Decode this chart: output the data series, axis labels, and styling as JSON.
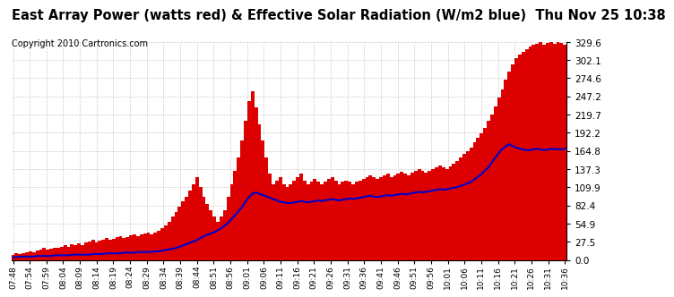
{
  "title": "East Array Power (watts red) & Effective Solar Radiation (W/m2 blue)  Thu Nov 25 10:38",
  "copyright": "Copyright 2010 Cartronics.com",
  "ymax": 329.6,
  "ymin": 0.0,
  "yticks": [
    0.0,
    27.5,
    54.9,
    82.4,
    109.9,
    137.3,
    164.8,
    192.2,
    219.7,
    247.2,
    274.6,
    302.1,
    329.6
  ],
  "xtick_labels": [
    "07:48",
    "07:54",
    "07:59",
    "08:04",
    "08:09",
    "08:14",
    "08:19",
    "08:24",
    "08:29",
    "08:34",
    "08:39",
    "08:44",
    "08:51",
    "08:56",
    "09:01",
    "09:06",
    "09:11",
    "09:16",
    "09:21",
    "09:26",
    "09:31",
    "09:36",
    "09:41",
    "09:46",
    "09:51",
    "09:56",
    "10:01",
    "10:06",
    "10:11",
    "10:16",
    "10:21",
    "10:26",
    "10:31",
    "10:36"
  ],
  "bar_color": "#dd0000",
  "line_color": "#0000cc",
  "background_color": "#ffffff",
  "grid_color": "#cccccc",
  "title_fontsize": 10.5,
  "copyright_fontsize": 7,
  "power_values": [
    8,
    10,
    9,
    10,
    12,
    13,
    12,
    14,
    16,
    18,
    15,
    17,
    19,
    18,
    20,
    22,
    20,
    24,
    22,
    25,
    23,
    26,
    28,
    30,
    27,
    29,
    31,
    33,
    30,
    32,
    34,
    36,
    33,
    35,
    37,
    39,
    36,
    38,
    40,
    42,
    39,
    41,
    44,
    48,
    52,
    58,
    65,
    72,
    80,
    88,
    95,
    105,
    115,
    125,
    110,
    95,
    85,
    75,
    65,
    58,
    65,
    75,
    95,
    115,
    135,
    155,
    180,
    210,
    240,
    255,
    230,
    205,
    180,
    155,
    130,
    115,
    120,
    125,
    115,
    110,
    115,
    120,
    125,
    130,
    120,
    115,
    118,
    122,
    118,
    115,
    118,
    122,
    125,
    120,
    115,
    118,
    120,
    118,
    115,
    118,
    120,
    122,
    125,
    128,
    125,
    122,
    125,
    128,
    130,
    125,
    128,
    130,
    133,
    130,
    128,
    132,
    135,
    138,
    135,
    132,
    135,
    138,
    140,
    143,
    140,
    138,
    142,
    145,
    150,
    155,
    160,
    165,
    170,
    178,
    185,
    192,
    200,
    210,
    220,
    232,
    245,
    258,
    272,
    285,
    295,
    305,
    310,
    315,
    318,
    322,
    325,
    327,
    329,
    325,
    328,
    329,
    326,
    329,
    328,
    325
  ],
  "radiation_values": [
    4,
    4,
    5,
    5,
    5,
    5,
    5,
    6,
    6,
    6,
    6,
    6,
    7,
    7,
    7,
    7,
    7,
    8,
    8,
    8,
    8,
    8,
    8,
    9,
    9,
    9,
    9,
    10,
    10,
    10,
    10,
    10,
    11,
    11,
    11,
    11,
    12,
    12,
    12,
    12,
    12,
    13,
    13,
    14,
    15,
    16,
    17,
    18,
    20,
    22,
    24,
    26,
    28,
    30,
    33,
    36,
    38,
    40,
    42,
    45,
    48,
    52,
    56,
    62,
    68,
    74,
    80,
    88,
    95,
    100,
    102,
    100,
    98,
    96,
    94,
    92,
    90,
    88,
    87,
    86,
    86,
    87,
    88,
    89,
    88,
    87,
    88,
    89,
    90,
    89,
    90,
    91,
    92,
    91,
    90,
    91,
    92,
    93,
    92,
    93,
    94,
    95,
    96,
    97,
    96,
    95,
    96,
    97,
    98,
    97,
    98,
    99,
    100,
    99,
    100,
    101,
    102,
    103,
    102,
    103,
    104,
    105,
    106,
    107,
    106,
    107,
    108,
    109,
    110,
    112,
    114,
    116,
    118,
    122,
    126,
    130,
    135,
    140,
    148,
    155,
    162,
    168,
    172,
    175,
    172,
    170,
    168,
    167,
    166,
    166,
    167,
    168,
    167,
    166,
    167,
    168,
    167,
    168,
    167,
    168
  ]
}
